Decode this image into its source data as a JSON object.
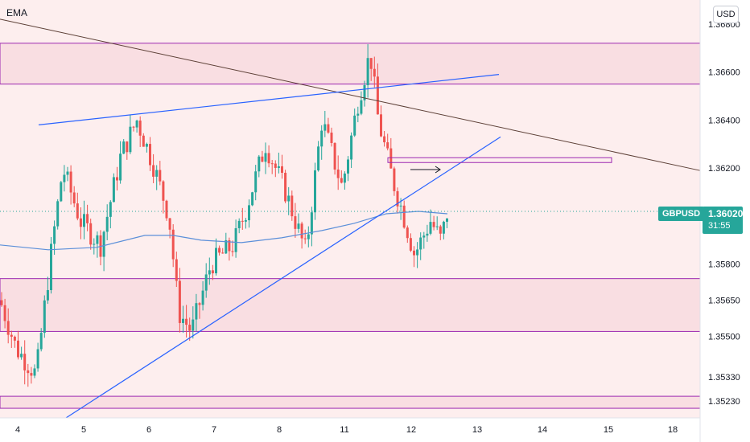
{
  "indicator_label": "EMA",
  "currency": "USD",
  "symbol": "GBPUSD",
  "last_price": "1.36020",
  "countdown": "31:55",
  "colors": {
    "up": "#26a69a",
    "down": "#ef5350",
    "zone_fill": "#f7d9df",
    "zone_border": "#9c27b0",
    "trendline": "#2962ff",
    "resistance_line": "#5d4037",
    "ema": "#5b8fd9"
  },
  "chart_data": {
    "type": "candlestick",
    "title": "",
    "symbol": "GBPUSD",
    "y_axis_ticks": [
      "1.36800",
      "1.36600",
      "1.36400",
      "1.36200",
      "1.35800",
      "1.35650",
      "1.35500",
      "1.35330",
      "1.35230"
    ],
    "x_axis_ticks": [
      "4",
      "5",
      "6",
      "7",
      "8",
      "11",
      "12",
      "13",
      "14",
      "15",
      "18"
    ],
    "zones": [
      {
        "from": 1.3655,
        "to": 1.3672
      },
      {
        "from": 1.3552,
        "to": 1.3574
      },
      {
        "from": 1.352,
        "to": 1.3525
      }
    ],
    "drawn_box": {
      "from": 1.36225,
      "to": 1.3624
    },
    "ema_segments": [
      {
        "day": "4",
        "value": 1.3588
      },
      {
        "day": "5",
        "value": 1.3587
      },
      {
        "day": "6",
        "value": 1.3591
      },
      {
        "day": "7",
        "value": 1.359
      },
      {
        "day": "8",
        "value": 1.359
      },
      {
        "day": "11",
        "value": 1.3598
      },
      {
        "day": "12",
        "value": 1.3602
      }
    ],
    "grid": false
  }
}
